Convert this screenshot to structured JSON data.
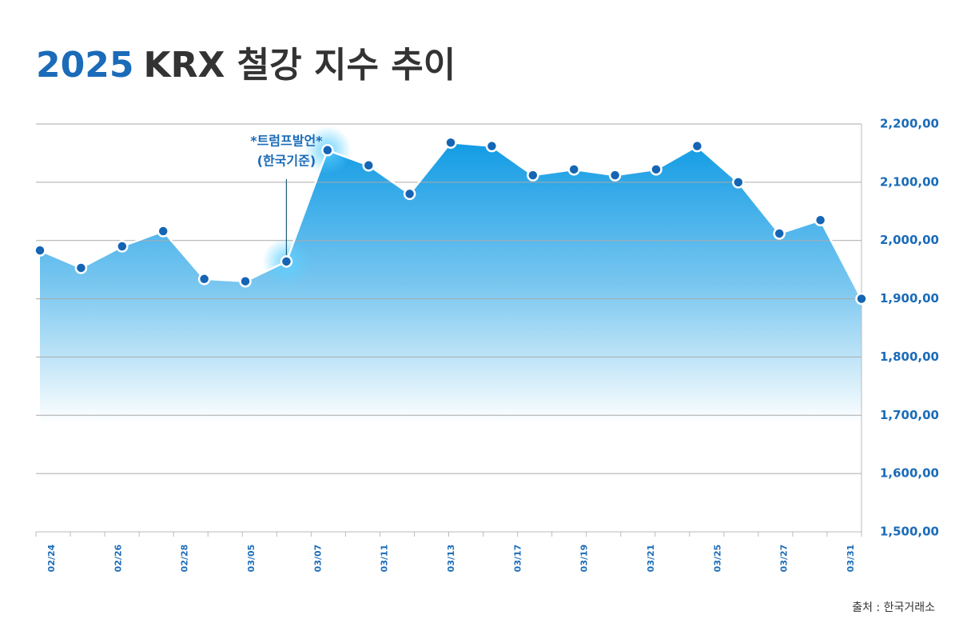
{
  "chart_data": {
    "type": "area",
    "title_year": "2025",
    "title": "KRX 철강 지수 추이",
    "x_labels": [
      "02/24",
      "02/26",
      "02/28",
      "03/05",
      "03/07",
      "03/11",
      "03/13",
      "03/17",
      "03/19",
      "03/21",
      "03/25",
      "03/27",
      "03/31"
    ],
    "values": [
      1983,
      1953,
      1990,
      2016,
      1934,
      1930,
      1964,
      2155,
      2129,
      2080,
      2168,
      2162,
      2112,
      2122,
      2112,
      2122,
      2162,
      2100,
      2012,
      2035,
      1900
    ],
    "color": "#1565b4",
    "ylim": [
      1500,
      2200
    ],
    "yticks": [
      {
        "value": 1500,
        "label": "1,500,00"
      },
      {
        "value": 1600,
        "label": "1,600,00"
      },
      {
        "value": 1700,
        "label": "1,700,00"
      },
      {
        "value": 1800,
        "label": "1,800,00"
      },
      {
        "value": 1900,
        "label": "1,900,00"
      },
      {
        "value": 2000,
        "label": "2,000,00"
      },
      {
        "value": 2100,
        "label": "2,100,00"
      },
      {
        "value": 2200,
        "label": "2,200,00"
      }
    ],
    "grid": true,
    "annotation": {
      "text": "*트럼프발언*",
      "subtext": "(한국기준)"
    },
    "source": "출처 : 한국거래소"
  }
}
